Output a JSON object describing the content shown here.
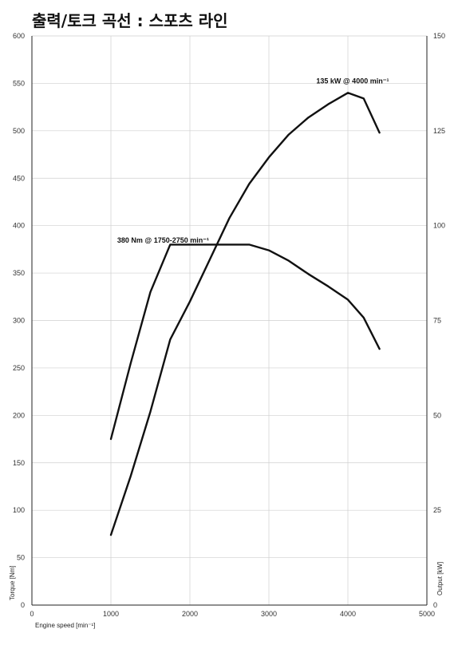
{
  "chart_data": {
    "type": "line",
    "title": "출력/토크 곡선 : 스포츠 라인",
    "xlabel": "Engine speed [min⁻¹]",
    "ylabel": "Torque [Nm]",
    "y2label": "Output [kW]",
    "xlim": [
      0,
      5000
    ],
    "ylim": [
      0,
      600
    ],
    "y2lim": [
      0,
      150
    ],
    "x_ticks": [
      0,
      1000,
      2000,
      3000,
      4000,
      5000
    ],
    "y_ticks": [
      0,
      50,
      100,
      150,
      200,
      250,
      300,
      350,
      400,
      450,
      500,
      550,
      600
    ],
    "y2_ticks": [
      0,
      25,
      50,
      75,
      100,
      125,
      150
    ],
    "grid": true,
    "series": [
      {
        "axis": "left",
        "x": [
          1000,
          1250,
          1500,
          1750,
          2000,
          2250,
          2500,
          2750,
          3000,
          3250,
          3500,
          3750,
          4000,
          4200,
          4400
        ],
        "values": [
          175,
          255,
          330,
          380,
          380,
          380,
          380,
          380,
          374,
          363,
          349,
          336,
          322,
          303,
          270
        ]
      },
      {
        "axis": "right",
        "x": [
          1000,
          1250,
          1500,
          1750,
          2000,
          2250,
          2500,
          2750,
          3000,
          3250,
          3500,
          3750,
          4000,
          4200,
          4400
        ],
        "values": [
          18.5,
          34,
          51,
          70,
          80,
          91,
          102,
          111,
          118,
          124,
          128.5,
          132,
          135,
          133.5,
          124.5
        ]
      }
    ],
    "annotations": [
      {
        "label": "380 Nm @ 1750-2750 min⁻¹",
        "x": 1080,
        "y": 382,
        "axis": "left"
      },
      {
        "label": "135 kW @ 4000 min⁻¹",
        "x": 3600,
        "y": 137.5,
        "axis": "right"
      }
    ]
  }
}
